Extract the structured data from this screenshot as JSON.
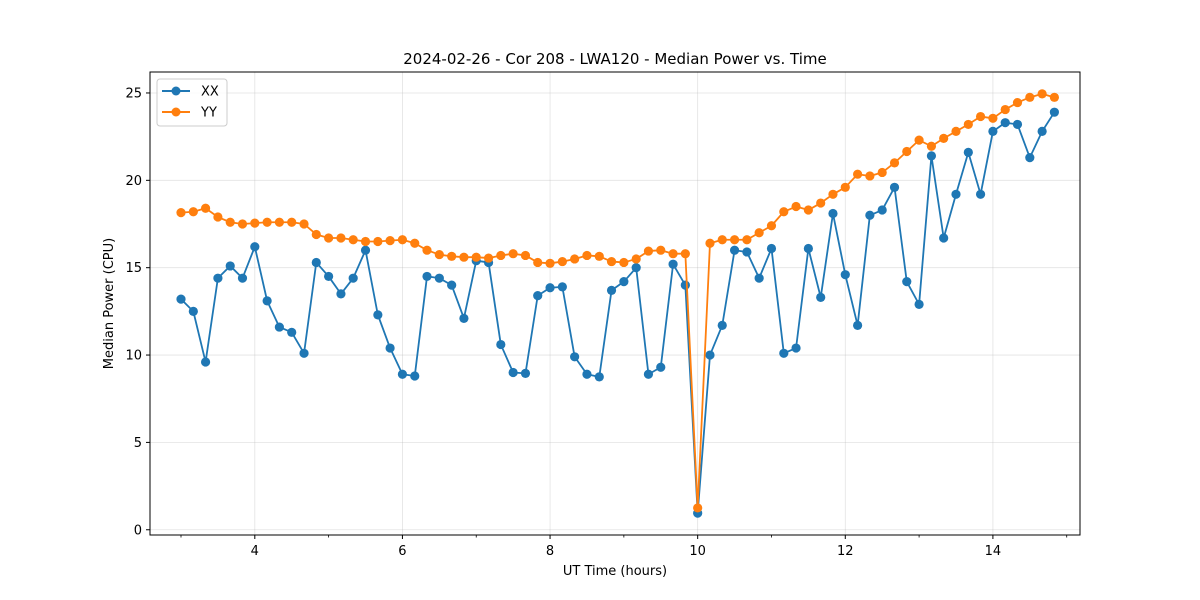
{
  "chart_data": {
    "type": "line",
    "title": "2024-02-26 - Cor 208 - LWA120 - Median Power vs. Time",
    "xlabel": "UT Time (hours)",
    "ylabel": "Median Power (CPU)",
    "xlim": [
      2.58,
      15.18
    ],
    "ylim": [
      -0.3,
      26.2
    ],
    "xticks": [
      4,
      6,
      8,
      10,
      12,
      14
    ],
    "xtick_labels": [
      "4",
      "6",
      "8",
      "10",
      "12",
      "14"
    ],
    "yticks": [
      0,
      5,
      10,
      15,
      20,
      25
    ],
    "ytick_labels": [
      "0",
      "5",
      "10",
      "15",
      "20",
      "25"
    ],
    "grid": true,
    "legend_position": "top-left",
    "x": [
      3.0,
      3.167,
      3.333,
      3.5,
      3.667,
      3.833,
      4.0,
      4.167,
      4.333,
      4.5,
      4.667,
      4.833,
      5.0,
      5.167,
      5.333,
      5.5,
      5.667,
      5.833,
      6.0,
      6.167,
      6.333,
      6.5,
      6.667,
      6.833,
      7.0,
      7.167,
      7.333,
      7.5,
      7.667,
      7.833,
      8.0,
      8.167,
      8.333,
      8.5,
      8.667,
      8.833,
      9.0,
      9.167,
      9.333,
      9.5,
      9.667,
      9.833,
      10.0,
      10.167,
      10.333,
      10.5,
      10.667,
      10.833,
      11.0,
      11.167,
      11.333,
      11.5,
      11.667,
      11.833,
      12.0,
      12.167,
      12.333,
      12.5,
      12.667,
      12.833,
      13.0,
      13.167,
      13.333,
      13.5,
      13.667,
      13.833,
      14.0,
      14.167,
      14.333,
      14.5,
      14.667,
      14.833
    ],
    "series": [
      {
        "name": "XX",
        "color": "#1f77b4",
        "values": [
          13.2,
          12.5,
          9.6,
          14.4,
          15.1,
          14.4,
          16.2,
          13.1,
          11.6,
          11.3,
          10.1,
          15.3,
          14.5,
          13.5,
          14.4,
          16.0,
          12.3,
          10.4,
          8.9,
          8.8,
          14.5,
          14.4,
          14.0,
          12.1,
          15.4,
          15.3,
          10.6,
          9.0,
          8.95,
          13.4,
          13.85,
          13.9,
          9.9,
          8.9,
          8.75,
          13.7,
          14.2,
          15.0,
          8.9,
          9.3,
          15.2,
          14.0,
          0.95,
          10.0,
          11.7,
          16.0,
          15.9,
          14.4,
          16.1,
          10.1,
          10.4,
          16.1,
          13.3,
          18.1,
          14.6,
          11.7,
          18.0,
          18.3,
          19.6,
          14.2,
          12.9,
          21.4,
          16.7,
          19.2,
          21.6,
          19.2,
          22.8,
          23.3,
          23.2,
          21.3,
          22.8,
          23.9
        ]
      },
      {
        "name": "YY",
        "color": "#ff7f0e",
        "values": [
          18.15,
          18.2,
          18.4,
          17.9,
          17.6,
          17.5,
          17.55,
          17.6,
          17.6,
          17.6,
          17.5,
          16.9,
          16.7,
          16.7,
          16.6,
          16.5,
          16.5,
          16.55,
          16.6,
          16.4,
          16.0,
          15.75,
          15.65,
          15.6,
          15.6,
          15.55,
          15.7,
          15.8,
          15.7,
          15.3,
          15.25,
          15.35,
          15.5,
          15.7,
          15.65,
          15.35,
          15.3,
          15.5,
          15.95,
          16.0,
          15.8,
          15.8,
          1.25,
          16.4,
          16.6,
          16.6,
          16.6,
          17.0,
          17.4,
          18.2,
          18.5,
          18.3,
          18.7,
          19.2,
          19.6,
          20.35,
          20.25,
          20.45,
          21.0,
          21.65,
          22.3,
          21.95,
          22.4,
          22.8,
          23.2,
          23.65,
          23.55,
          24.05,
          24.45,
          24.75,
          24.95,
          24.75
        ]
      }
    ]
  }
}
